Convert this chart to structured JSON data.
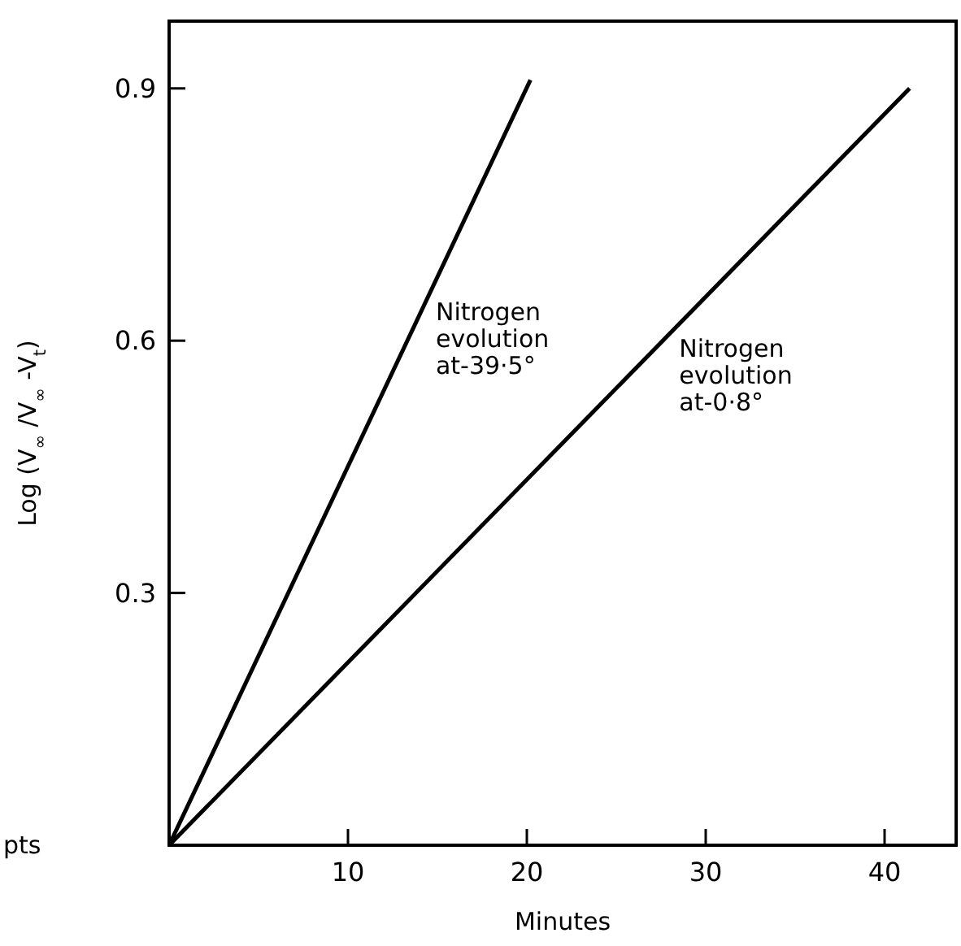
{
  "chart_data": {
    "type": "line",
    "xlabel": "Minutes",
    "ylabel": "Log (V$_{∞}$ /V$_{∞}$ -V$_{t}$)",
    "xlim": [
      0,
      44
    ],
    "ylim": [
      0,
      0.98
    ],
    "xticks": [
      10,
      20,
      30,
      40
    ],
    "yticks": [
      0.3,
      0.6,
      0.9
    ],
    "grid": false,
    "marker": "none",
    "line_style": "solid",
    "series": [
      {
        "name": "Nitrogen evolution at-39·5°",
        "color": "#000000",
        "x": [
          0,
          20.2
        ],
        "values": [
          0,
          0.91
        ]
      },
      {
        "name": "Nitrogen evolution at-0·8°",
        "color": "#000000",
        "x": [
          0,
          41.4
        ],
        "values": [
          0,
          0.9
        ]
      }
    ],
    "annotations": [
      "pts"
    ]
  }
}
